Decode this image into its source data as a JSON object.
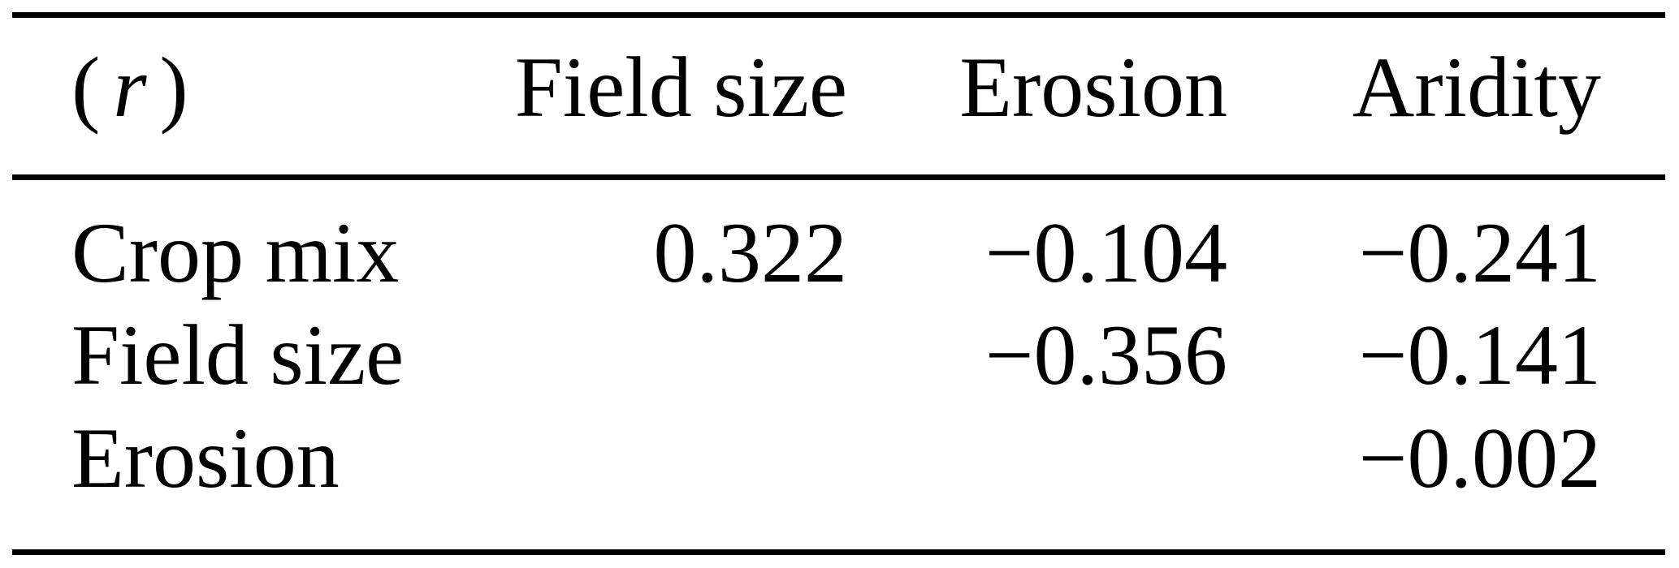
{
  "table": {
    "corner_label": {
      "open": "(",
      "var": "r",
      "close": ")"
    },
    "columns": [
      "Field size",
      "Erosion",
      "Aridity"
    ],
    "rows": [
      {
        "label": "Crop mix",
        "values": [
          "0.322",
          "−0.104",
          "−0.241"
        ]
      },
      {
        "label": "Field size",
        "values": [
          "",
          "−0.356",
          "−0.141"
        ]
      },
      {
        "label": "Erosion",
        "values": [
          "",
          "",
          "−0.002"
        ]
      }
    ]
  },
  "chart_data": {
    "type": "table",
    "corner": "(r)",
    "columns": [
      "Field size",
      "Erosion",
      "Aridity"
    ],
    "row_labels": [
      "Crop mix",
      "Field size",
      "Erosion"
    ],
    "values": [
      [
        0.322,
        -0.104,
        -0.241
      ],
      [
        null,
        -0.356,
        -0.141
      ],
      [
        null,
        null,
        -0.002
      ]
    ]
  },
  "style": {
    "text_color": "#000000",
    "background_color": "#ffffff"
  }
}
